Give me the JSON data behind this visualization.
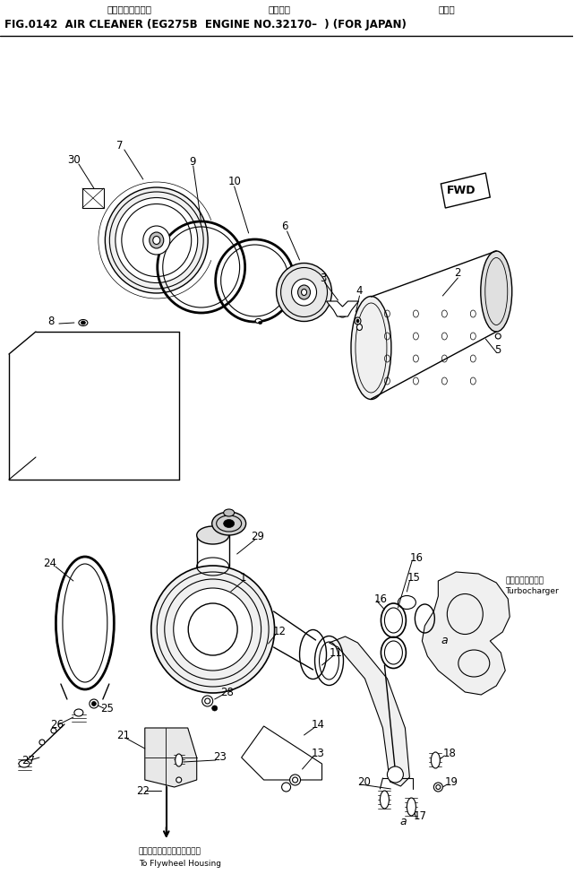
{
  "title_jp": "エアー　クリーナ",
  "title_jp2": "適用号機",
  "title_jp3": "国内向",
  "title_en": "FIG.0142  AIR CLEANER (EG275B  ENGINE NO.32170–  ) (FOR JAPAN)",
  "bg_color": "#ffffff",
  "lc": "#000000",
  "fig_width": 6.41,
  "fig_height": 9.85,
  "dpi": 100
}
